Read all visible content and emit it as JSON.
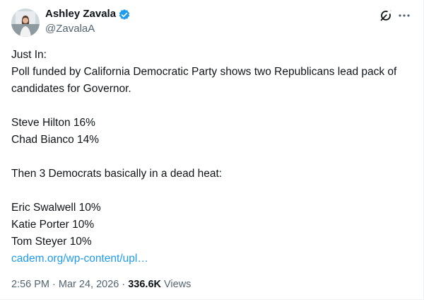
{
  "author": {
    "name": "Ashley Zavala",
    "handle": "@ZavalaA"
  },
  "body": {
    "paragraphs": [
      [
        "Just In:",
        "Poll funded by California Democratic Party shows two Republicans lead pack of candidates for Governor."
      ],
      [
        "Steve Hilton 16%",
        "Chad Bianco 14%"
      ],
      [
        "Then 3 Democrats basically in a dead heat:"
      ],
      [
        "Eric Swalwell 10%",
        "Katie Porter 10%",
        "Tom Steyer 10%"
      ]
    ],
    "link": "cadem.org/wp-content/upl…"
  },
  "meta": {
    "timestamp": "2:56 PM · Mar 24, 2026 ·",
    "views": "336.6K",
    "views_label": "Views"
  }
}
